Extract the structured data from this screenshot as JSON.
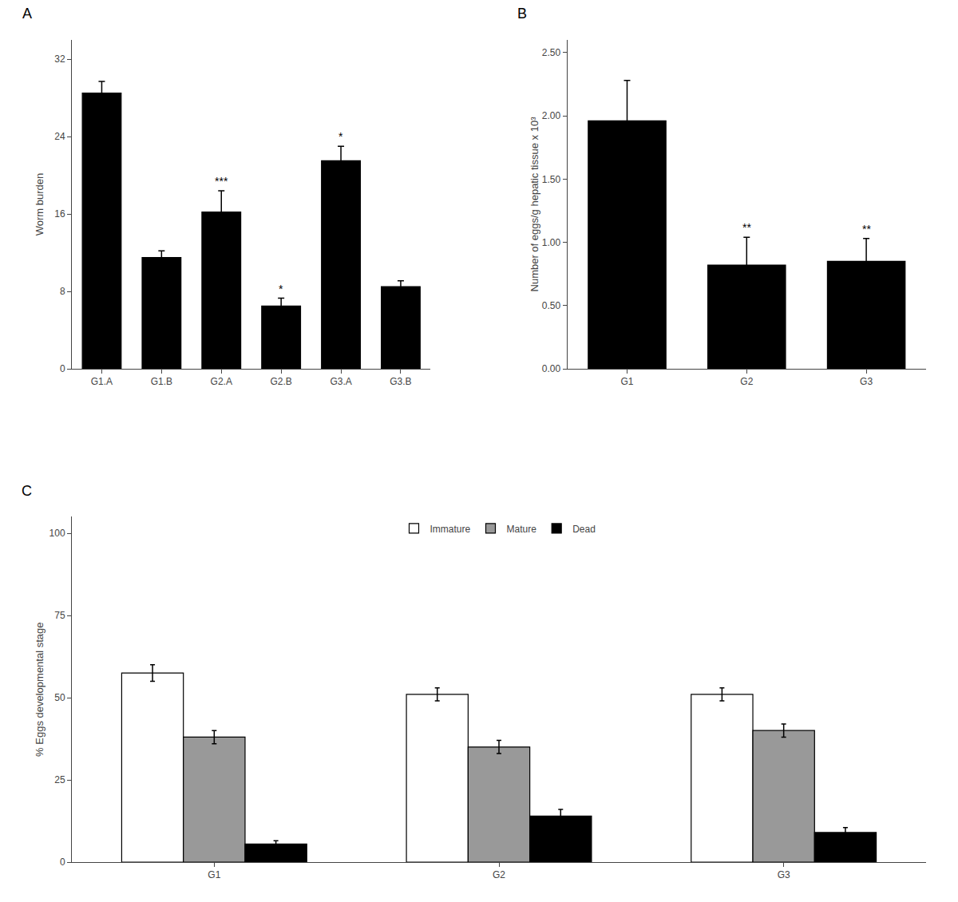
{
  "chart_data": [
    {
      "type": "bar",
      "title": "A",
      "categories": [
        "G1.A",
        "G1.B",
        "G2.A",
        "G2.B",
        "G3.A",
        "G3.B"
      ],
      "values": [
        28.5,
        11.5,
        16.2,
        6.5,
        21.5,
        8.5
      ],
      "errors": [
        1.2,
        0.7,
        2.2,
        0.8,
        1.5,
        0.6
      ],
      "annotations": [
        {
          "x": "G2.A",
          "text": "***"
        },
        {
          "x": "G2.B",
          "text": "*"
        },
        {
          "x": "G3.A",
          "text": "*"
        }
      ],
      "color": "#000000",
      "ylabel": "Worm burden",
      "ylim": [
        0,
        34
      ],
      "yticks": [
        0,
        8,
        16,
        24,
        32
      ],
      "grid": false
    },
    {
      "type": "bar",
      "title": "B",
      "categories": [
        "G1",
        "G2",
        "G3"
      ],
      "values": [
        1.96,
        0.82,
        0.85
      ],
      "errors": [
        0.32,
        0.22,
        0.18
      ],
      "annotations": [
        {
          "x": "G2",
          "text": "**"
        },
        {
          "x": "G3",
          "text": "**"
        }
      ],
      "color": "#000000",
      "ylabel": "Number of eggs/g hepatic tissue x 10³",
      "ylim": [
        0,
        2.6
      ],
      "yticks": [
        {
          "value": 0,
          "label": "0.00"
        },
        {
          "value": 0.5,
          "label": "0.50"
        },
        {
          "value": 1,
          "label": "1.00"
        },
        {
          "value": 1.5,
          "label": "1.50"
        },
        {
          "value": 2,
          "label": "2.00"
        },
        {
          "value": 2.5,
          "label": "2.50"
        }
      ],
      "grid": false
    },
    {
      "type": "bar",
      "title": "C",
      "categories": [
        "G1",
        "G2",
        "G3"
      ],
      "series": [
        {
          "name": "Immature",
          "color": "#ffffff",
          "values": [
            57.5,
            51.0,
            51.0
          ],
          "errors": [
            2.5,
            2.0,
            2.0
          ]
        },
        {
          "name": "Mature",
          "color": "#999999",
          "values": [
            38.0,
            35.0,
            40.0
          ],
          "errors": [
            2.0,
            2.0,
            2.0
          ]
        },
        {
          "name": "Dead",
          "color": "#000000",
          "values": [
            5.5,
            14.0,
            9.0
          ],
          "errors": [
            1.0,
            2.0,
            1.5
          ]
        }
      ],
      "ylabel": "% Eggs developmental stage",
      "ylim": [
        0,
        105
      ],
      "yticks": [
        0,
        25,
        50,
        75,
        100
      ],
      "legend": "top",
      "grid": false
    }
  ]
}
